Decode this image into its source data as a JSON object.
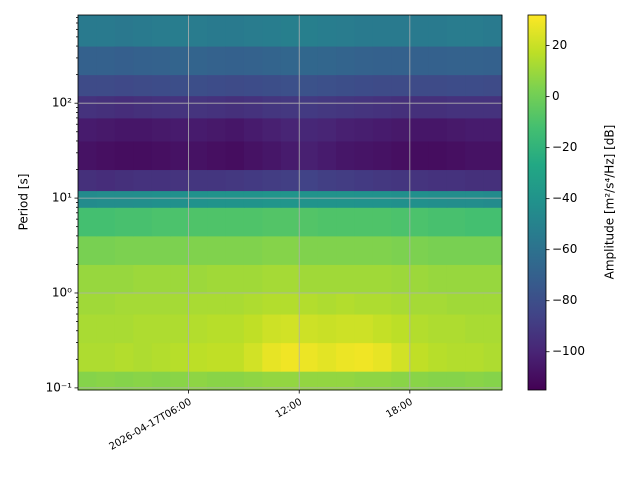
{
  "chart_data": {
    "type": "heatmap",
    "colormap": "viridis",
    "grid": true,
    "ylabel": "Period [s]",
    "yscale": "log",
    "x": [
      "2026-04-17T00:00",
      "2026-04-17T01:00",
      "2026-04-17T02:00",
      "2026-04-17T03:00",
      "2026-04-17T04:00",
      "2026-04-17T05:00",
      "2026-04-17T06:00",
      "2026-04-17T07:00",
      "2026-04-17T08:00",
      "2026-04-17T09:00",
      "2026-04-17T10:00",
      "2026-04-17T11:00",
      "2026-04-17T12:00",
      "2026-04-17T13:00",
      "2026-04-17T14:00",
      "2026-04-17T15:00",
      "2026-04-17T16:00",
      "2026-04-17T17:00",
      "2026-04-17T18:00",
      "2026-04-17T19:00",
      "2026-04-17T20:00",
      "2026-04-17T21:00",
      "2026-04-17T22:00",
      "2026-04-17T23:00"
    ],
    "ybins": [
      0.095,
      0.15,
      0.3,
      0.6,
      1,
      2,
      4,
      8,
      12,
      20,
      40,
      70,
      120,
      200,
      400,
      850
    ],
    "values": [
      [
        5,
        6,
        5,
        6,
        5,
        6,
        7,
        6,
        6,
        7,
        8,
        8,
        8,
        8,
        8,
        7,
        7,
        6,
        6,
        5,
        5,
        6,
        5
      ],
      [
        14,
        14,
        15,
        14,
        15,
        16,
        17,
        18,
        18,
        22,
        27,
        29,
        28,
        26,
        28,
        29,
        27,
        22,
        18,
        16,
        15,
        15,
        14
      ],
      [
        13,
        13,
        13,
        14,
        14,
        14,
        15,
        16,
        16,
        18,
        21,
        22,
        21,
        20,
        21,
        21,
        19,
        17,
        15,
        14,
        14,
        13,
        13
      ],
      [
        11,
        11,
        12,
        12,
        12,
        12,
        13,
        13,
        13,
        14,
        15,
        15,
        15,
        14,
        15,
        14,
        14,
        13,
        12,
        12,
        11,
        11,
        11
      ],
      [
        9,
        9,
        9,
        10,
        10,
        10,
        10,
        11,
        11,
        11,
        12,
        12,
        11,
        11,
        11,
        11,
        11,
        10,
        10,
        9,
        9,
        9,
        9
      ],
      [
        2,
        2,
        3,
        3,
        3,
        3,
        4,
        4,
        4,
        4,
        5,
        5,
        4,
        4,
        4,
        4,
        4,
        3,
        3,
        2,
        2,
        2,
        2
      ],
      [
        -12,
        -12,
        -11,
        -11,
        -10,
        -10,
        -9,
        -9,
        -9,
        -9,
        -8,
        -8,
        -8,
        -9,
        -9,
        -9,
        -9,
        -10,
        -10,
        -11,
        -11,
        -12,
        -12
      ],
      [
        -45,
        -44,
        -44,
        -43,
        -42,
        -42,
        -41,
        -40,
        -40,
        -40,
        -39,
        -39,
        -40,
        -40,
        -40,
        -41,
        -41,
        -42,
        -42,
        -43,
        -44,
        -44,
        -45
      ],
      [
        -95,
        -96,
        -95,
        -94,
        -94,
        -93,
        -92,
        -92,
        -91,
        -90,
        -89,
        -88,
        -86,
        -88,
        -89,
        -90,
        -91,
        -92,
        -93,
        -94,
        -94,
        -95,
        -95
      ],
      [
        -108,
        -109,
        -110,
        -110,
        -109,
        -108,
        -108,
        -109,
        -110,
        -108,
        -106,
        -104,
        -102,
        -104,
        -106,
        -107,
        -108,
        -109,
        -110,
        -110,
        -109,
        -108,
        -108
      ],
      [
        -104,
        -105,
        -106,
        -106,
        -105,
        -104,
        -104,
        -105,
        -106,
        -104,
        -102,
        -100,
        -99,
        -100,
        -102,
        -103,
        -104,
        -105,
        -106,
        -106,
        -105,
        -104,
        -104
      ],
      [
        -94,
        -95,
        -96,
        -95,
        -94,
        -93,
        -93,
        -94,
        -95,
        -94,
        -92,
        -91,
        -90,
        -91,
        -92,
        -93,
        -94,
        -95,
        -95,
        -95,
        -94,
        -94,
        -94
      ],
      [
        -82,
        -82,
        -83,
        -82,
        -81,
        -80,
        -80,
        -81,
        -82,
        -81,
        -80,
        -79,
        -78,
        -79,
        -80,
        -81,
        -82,
        -82,
        -82,
        -82,
        -81,
        -81,
        -82
      ],
      [
        -70,
        -70,
        -71,
        -70,
        -69,
        -68,
        -68,
        -69,
        -70,
        -69,
        -68,
        -67,
        -66,
        -67,
        -68,
        -69,
        -70,
        -70,
        -70,
        -70,
        -69,
        -69,
        -70
      ],
      [
        -55,
        -55,
        -56,
        -55,
        -54,
        -53,
        -54,
        -55,
        -55,
        -54,
        -53,
        -52,
        -52,
        -53,
        -54,
        -55,
        -55,
        -55,
        -55,
        -55,
        -54,
        -54,
        -55
      ]
    ],
    "xlim": [
      "2026-04-17T00:00",
      "2026-04-17T23:00"
    ],
    "xticks": [
      "2026-04-17T06:00",
      {
        "value": "2026-04-17T12:00",
        "label": "12:00"
      },
      {
        "value": "2026-04-17T18:00",
        "label": "18:00"
      }
    ],
    "ylim": [
      0.095,
      850
    ],
    "yticks": [
      {
        "value": 0.1,
        "label": "10⁻¹"
      },
      {
        "value": 1,
        "label": "10⁰"
      },
      {
        "value": 10,
        "label": "10¹"
      },
      {
        "value": 100,
        "label": "10²"
      }
    ],
    "colorbar": {
      "label": "Amplitude [m²/s⁴/Hz] [dB]",
      "clim": [
        -115,
        32
      ],
      "ticks": [
        20,
        0,
        {
          "value": -20,
          "label": "−20"
        },
        {
          "value": -40,
          "label": "−40"
        },
        {
          "value": -60,
          "label": "−60"
        },
        {
          "value": -80,
          "label": "−80"
        },
        {
          "value": -100,
          "label": "−100"
        }
      ]
    }
  }
}
